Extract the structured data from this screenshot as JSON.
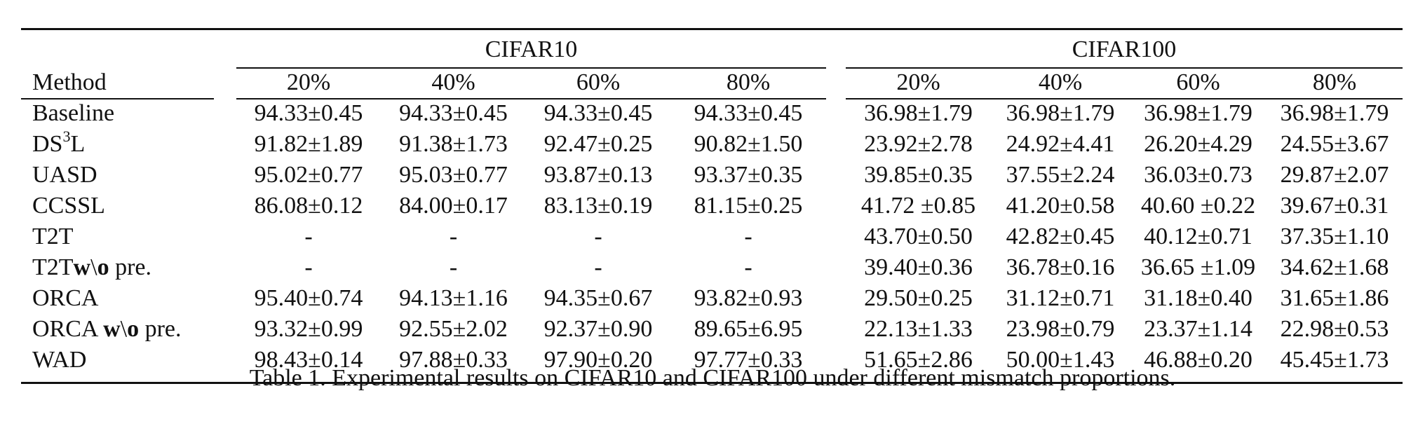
{
  "table": {
    "group_headers": [
      "CIFAR10",
      "CIFAR100"
    ],
    "column_headers": [
      "Method",
      "20%",
      "40%",
      "60%",
      "80%",
      "20%",
      "40%",
      "60%",
      "80%"
    ],
    "rows": [
      {
        "method": "Baseline",
        "values": [
          "94.33±0.45",
          "94.33±0.45",
          "94.33±0.45",
          "94.33±0.45",
          "36.98±1.79",
          "36.98±1.79",
          "36.98±1.79",
          "36.98±1.79"
        ]
      },
      {
        "method_prefix": "DS",
        "method_sup": "3",
        "method_suffix": "L",
        "values": [
          "91.82±1.89",
          "91.38±1.73",
          "92.47±0.25",
          "90.82±1.50",
          "23.92±2.78",
          "24.92±4.41",
          "26.20±4.29",
          "24.55±3.67"
        ]
      },
      {
        "method": "UASD",
        "values": [
          "95.02±0.77",
          "95.03±0.77",
          "93.87±0.13",
          "93.37±0.35",
          "39.85±0.35",
          "37.55±2.24",
          "36.03±0.73",
          "29.87±2.07"
        ]
      },
      {
        "method": "CCSSL",
        "values": [
          "86.08±0.12",
          "84.00±0.17",
          "83.13±0.19",
          "81.15±0.25",
          "41.72 ±0.85",
          "41.20±0.58",
          "40.60 ±0.22",
          "39.67±0.31"
        ]
      },
      {
        "method": "T2T",
        "values": [
          "-",
          "-",
          "-",
          "-",
          "43.70±0.50",
          "42.82±0.45",
          "40.12±0.71",
          "37.35±1.10"
        ]
      },
      {
        "method_prefix": "T2T",
        "method_bold1": "w",
        "method_mid": "\\",
        "method_bold2": "o",
        "method_suffix": " pre.",
        "values": [
          "-",
          "-",
          "-",
          "-",
          "39.40±0.36",
          "36.78±0.16",
          "36.65 ±1.09",
          "34.62±1.68"
        ]
      },
      {
        "method": "ORCA",
        "values": [
          "95.40±0.74",
          "94.13±1.16",
          "94.35±0.67",
          "93.82±0.93",
          "29.50±0.25",
          "31.12±0.71",
          "31.18±0.40",
          "31.65±1.86"
        ]
      },
      {
        "method_prefix": "ORCA ",
        "method_bold1": "w",
        "method_mid": "\\",
        "method_bold2": "o",
        "method_suffix": " pre.",
        "values": [
          "93.32±0.99",
          "92.55±2.02",
          "92.37±0.90",
          "89.65±6.95",
          "22.13±1.33",
          "23.98±0.79",
          "23.37±1.14",
          "22.98±0.53"
        ]
      },
      {
        "method": "WAD",
        "bold": true,
        "values": [
          "98.43±0.14",
          "97.88±0.33",
          "97.90±0.20",
          "97.77±0.33",
          "51.65±2.86",
          "50.00±1.43",
          "46.88±0.20",
          "45.45±1.73"
        ]
      }
    ]
  },
  "caption": "Table 1. Experimental results on CIFAR10 and CIFAR100 under different mismatch proportions."
}
